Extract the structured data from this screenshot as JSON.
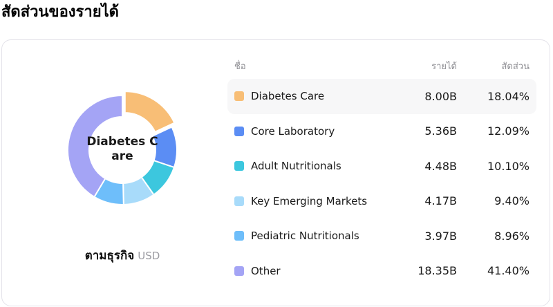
{
  "page": {
    "title": "สัดส่วนของรายได้"
  },
  "card": {
    "donut": {
      "center_label_line1": "Diabetes C",
      "center_label_line2": "are"
    },
    "caption": {
      "label": "ตามธุรกิจ",
      "unit": "USD"
    },
    "table": {
      "headers": {
        "name": "ชื่อ",
        "revenue": "รายได้",
        "share": "สัดส่วน"
      },
      "rows": [
        {
          "label": "Diabetes Care",
          "revenue": "8.00B",
          "share": "18.04%",
          "color": "#F8BE76",
          "highlighted": true
        },
        {
          "label": "Core Laboratory",
          "revenue": "5.36B",
          "share": "12.09%",
          "color": "#5B8DF4",
          "highlighted": false
        },
        {
          "label": "Adult Nutritionals",
          "revenue": "4.48B",
          "share": "10.10%",
          "color": "#3CC7DE",
          "highlighted": false
        },
        {
          "label": "Key Emerging Markets",
          "revenue": "4.17B",
          "share": "9.40%",
          "color": "#A8DBFA",
          "highlighted": false
        },
        {
          "label": "Pediatric Nutritionals",
          "revenue": "3.97B",
          "share": "8.96%",
          "color": "#6EBEFA",
          "highlighted": false
        },
        {
          "label": "Other",
          "revenue": "18.35B",
          "share": "41.40%",
          "color": "#A4A4F5",
          "highlighted": false
        }
      ]
    }
  },
  "chart_data": {
    "type": "pie",
    "donut": true,
    "title": "สัดส่วนของรายได้",
    "subtitle": "ตามธุรกิจ USD",
    "categories": [
      "Diabetes Care",
      "Core Laboratory",
      "Adult Nutritionals",
      "Key Emerging Markets",
      "Pediatric Nutritionals",
      "Other"
    ],
    "values_revenue_B": [
      8.0,
      5.36,
      4.48,
      4.17,
      3.97,
      18.35
    ],
    "values_share_pct": [
      18.04,
      12.09,
      10.1,
      9.4,
      8.96,
      41.4
    ],
    "colors": [
      "#F8BE76",
      "#5B8DF4",
      "#3CC7DE",
      "#A8DBFA",
      "#6EBEFA",
      "#A4A4F5"
    ],
    "selected_slice": "Diabetes Care",
    "center_label": "Diabetes Care",
    "legend_position": "right-table",
    "start_angle_deg": 0,
    "direction": "clockwise"
  }
}
